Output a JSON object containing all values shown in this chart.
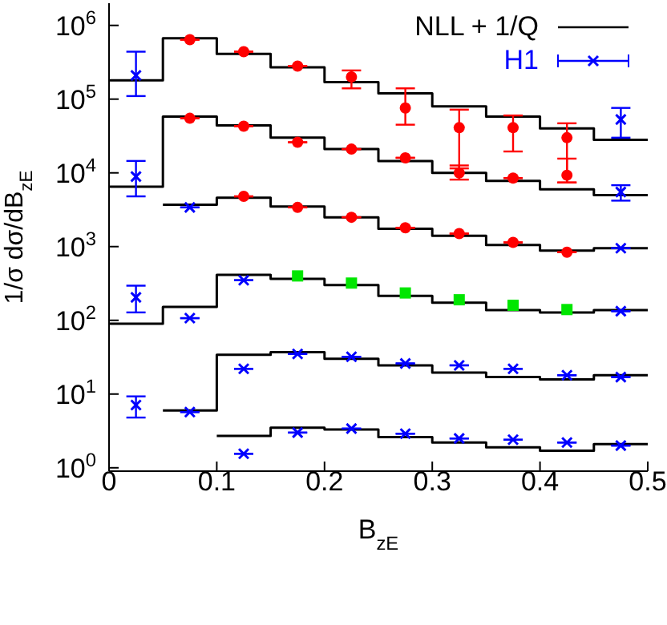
{
  "chart_data": {
    "type": "step",
    "xlabel": "B$_{zE}$",
    "ylabel": "1/σ dσ/dB$_{zE}$",
    "log": "y",
    "grid": false,
    "legend": "top right",
    "xlim": [
      0,
      0.5
    ],
    "xticks": [
      0,
      0.1,
      0.2,
      0.3,
      0.4,
      0.5
    ],
    "ylim": [
      0.9,
      2000000
    ],
    "yticks": [
      {
        "value": 1,
        "label": "10$^{0}$"
      },
      {
        "value": 10,
        "label": "10$^{1}$"
      },
      {
        "value": 100,
        "label": "10$^{2}$"
      },
      {
        "value": 1000,
        "label": "10$^{3}$"
      },
      {
        "value": 10000,
        "label": "10$^{4}$"
      },
      {
        "value": 100000,
        "label": "10$^{5}$"
      },
      {
        "value": 1000000,
        "label": "10$^{6}$"
      }
    ],
    "series": [
      {
        "name": "NLL + 1/Q",
        "color": "#000000",
        "x": [
          0,
          0.05,
          0.1,
          0.15,
          0.2,
          0.25,
          0.3,
          0.35,
          0.4,
          0.45,
          0.5
        ],
        "values": [
          180000,
          670000,
          410000,
          270000,
          170000,
          120000,
          80000,
          58000,
          40000,
          28000,
          28000
        ]
      },
      {
        "color": "#000000",
        "x": [
          0,
          0.05,
          0.1,
          0.15,
          0.2,
          0.25,
          0.3,
          0.35,
          0.4,
          0.45,
          0.5
        ],
        "values": [
          6500,
          58000,
          44000,
          30000,
          21000,
          14500,
          10000,
          7800,
          6000,
          5000,
          5000
        ]
      },
      {
        "color": "#000000",
        "x": [
          0.05,
          0.1,
          0.15,
          0.2,
          0.25,
          0.3,
          0.35,
          0.4,
          0.45,
          0.5
        ],
        "values": [
          3700,
          4600,
          3500,
          2500,
          1750,
          1400,
          1050,
          880,
          950,
          950
        ]
      },
      {
        "color": "#000000",
        "x": [
          0,
          0.05,
          0.1,
          0.15,
          0.2,
          0.25,
          0.3,
          0.35,
          0.4,
          0.45,
          0.5
        ],
        "values": [
          90,
          152,
          415,
          365,
          300,
          215,
          174,
          138,
          128,
          138,
          138
        ]
      },
      {
        "color": "#000000",
        "x": [
          0.05,
          0.1,
          0.15,
          0.2,
          0.25,
          0.3,
          0.35,
          0.4,
          0.45,
          0.5
        ],
        "values": [
          6,
          34,
          37,
          30,
          24.5,
          19.5,
          17,
          15.8,
          18,
          18
        ]
      },
      {
        "color": "#000000",
        "x": [
          0.1,
          0.15,
          0.2,
          0.25,
          0.3,
          0.35,
          0.4,
          0.45,
          0.5
        ],
        "values": [
          2.7,
          3.5,
          3.3,
          2.6,
          2.2,
          1.9,
          1.7,
          2.1,
          2.1
        ]
      },
      {
        "name": "H1",
        "type": "scatter",
        "marker": "cross",
        "color": "#0000ff",
        "x": [
          0.025,
          0.475,
          0.025,
          0.475,
          0.075,
          0.475,
          0.025,
          0.075,
          0.125,
          0.475,
          0.025,
          0.075,
          0.125,
          0.175,
          0.225,
          0.275,
          0.325,
          0.375,
          0.425,
          0.475,
          0.125,
          0.175,
          0.225,
          0.275,
          0.325,
          0.375,
          0.425,
          0.475
        ],
        "values": [
          210000,
          53000,
          8900,
          5500,
          3400,
          950,
          205,
          107,
          350,
          133,
          7.1,
          5.7,
          22,
          35,
          32,
          26,
          24.5,
          22,
          18,
          17,
          1.55,
          3.0,
          3.4,
          2.9,
          2.5,
          2.4,
          2.2,
          2.0
        ],
        "errors": [
          [
            110000,
            440000
          ],
          [
            30000,
            76000
          ],
          [
            4800,
            14500
          ],
          [
            4200,
            6800
          ],
          null,
          null,
          [
            128,
            295
          ],
          null,
          null,
          null,
          [
            4.8,
            9.3
          ],
          null,
          null,
          null,
          null,
          null,
          null,
          null,
          null,
          null,
          null,
          null,
          null,
          null,
          null,
          null,
          null,
          null
        ]
      },
      {
        "type": "scatter",
        "marker": "circle",
        "color": "#ff0000",
        "x": [
          0.075,
          0.125,
          0.175,
          0.225,
          0.275,
          0.325,
          0.375,
          0.425,
          0.075,
          0.125,
          0.175,
          0.225,
          0.275,
          0.325,
          0.375,
          0.425,
          0.125,
          0.175,
          0.225,
          0.275,
          0.325,
          0.375,
          0.425
        ],
        "values": [
          640000,
          440000,
          280000,
          200000,
          76000,
          41000,
          41000,
          30000,
          55000,
          43000,
          26000,
          21000,
          16000,
          10000,
          8500,
          9300,
          4800,
          3400,
          2500,
          1800,
          1500,
          1140,
          840
        ],
        "errors": [
          null,
          null,
          null,
          [
            140000,
            245000
          ],
          [
            45000,
            140000
          ],
          [
            11500,
            72000
          ],
          [
            19500,
            60000
          ],
          [
            7400,
            47000
          ],
          null,
          null,
          null,
          null,
          null,
          [
            8100,
            12600
          ],
          null,
          [
            7400,
            15600
          ],
          null,
          null,
          null,
          null,
          null,
          null,
          null
        ]
      },
      {
        "type": "scatter",
        "marker": "square",
        "color": "#00e600",
        "x": [
          0.175,
          0.225,
          0.275,
          0.325,
          0.375,
          0.425
        ],
        "values": [
          400,
          320,
          235,
          190,
          160,
          140
        ]
      }
    ]
  }
}
